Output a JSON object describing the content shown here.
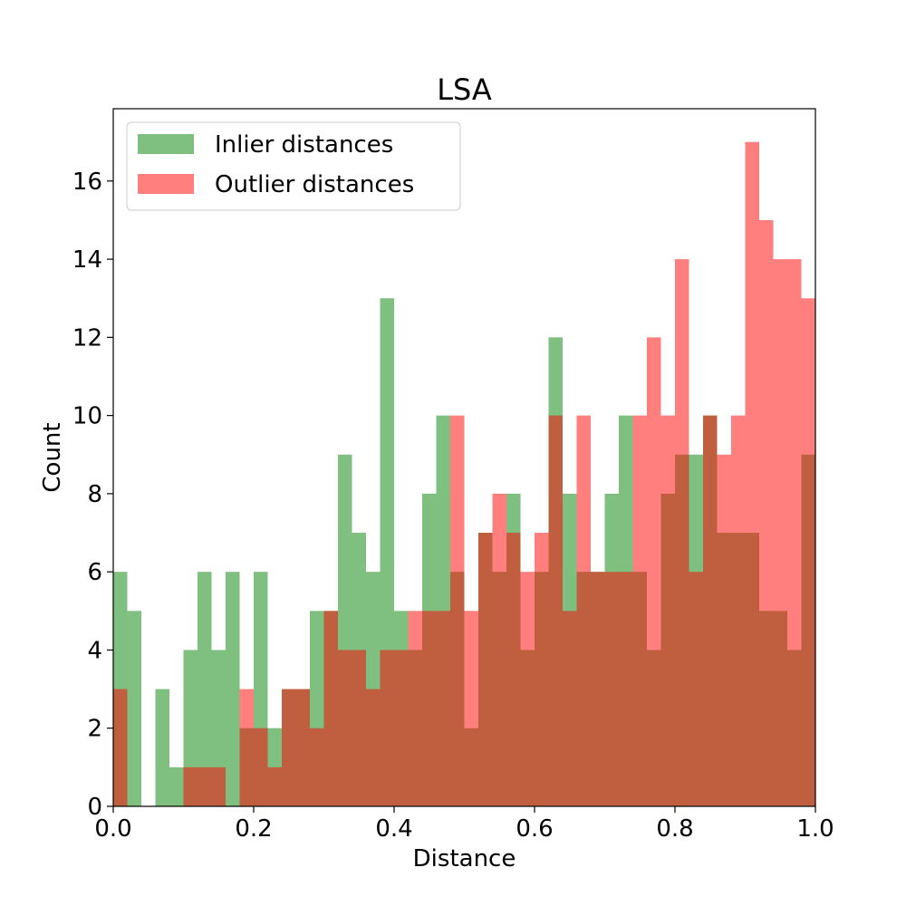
{
  "chart_data": {
    "type": "histogram",
    "title": "LSA",
    "xlabel": "Distance",
    "ylabel": "Count",
    "xlim": [
      0.0,
      1.0
    ],
    "ylim": [
      0,
      17.85
    ],
    "xticks": [
      0.0,
      0.2,
      0.4,
      0.6,
      0.8,
      1.0
    ],
    "xtick_labels": [
      "0.0",
      "0.2",
      "0.4",
      "0.6",
      "0.8",
      "1.0"
    ],
    "yticks": [
      0,
      2,
      4,
      6,
      8,
      10,
      12,
      14,
      16
    ],
    "ytick_labels": [
      "0",
      "2",
      "4",
      "6",
      "8",
      "10",
      "12",
      "14",
      "16"
    ],
    "bins": 50,
    "bin_range": [
      0.0,
      1.0
    ],
    "legend_position": "upper-left",
    "grid": false,
    "series": [
      {
        "name": "Inlier distances",
        "color": "#008000",
        "opacity": 0.5,
        "counts": [
          6,
          5,
          0,
          3,
          1,
          4,
          6,
          4,
          6,
          2,
          6,
          2,
          3,
          3,
          5,
          5,
          9,
          7,
          6,
          13,
          5,
          4,
          8,
          10,
          6,
          2,
          7,
          6,
          8,
          4,
          6,
          12,
          8,
          6,
          6,
          8,
          10,
          6,
          4,
          8,
          9,
          9,
          10,
          7,
          7,
          7,
          5,
          5,
          4,
          9
        ]
      },
      {
        "name": "Outlier distances",
        "color": "#ff0000",
        "opacity": 0.5,
        "counts": [
          3,
          0,
          0,
          0,
          0,
          1,
          1,
          1,
          0,
          3,
          2,
          1,
          3,
          3,
          2,
          5,
          4,
          4,
          3,
          4,
          4,
          5,
          5,
          5,
          10,
          5,
          7,
          8,
          7,
          6,
          7,
          10,
          5,
          10,
          6,
          6,
          6,
          10,
          12,
          10,
          14,
          6,
          10,
          9,
          10,
          17,
          15,
          14,
          14,
          13
        ]
      }
    ]
  }
}
